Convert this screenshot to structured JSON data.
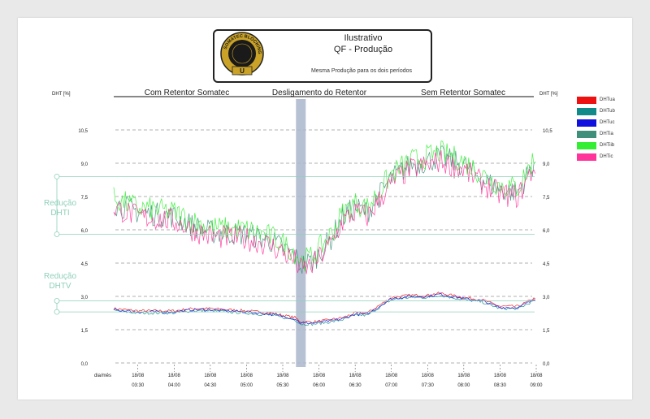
{
  "header": {
    "title": "Ilustrativo",
    "subtitle": "QF - Produção",
    "note": "Mesma Produção para os dois períodos",
    "logo": {
      "text": "SOMATEC BLOCKING",
      "letter": "U",
      "ring_color": "#c9a227",
      "badge_color": "#1a1a1a"
    }
  },
  "periods": [
    "Com Retentor Somatec",
    "Desligamento do Retentor",
    "Sem Retentor Somatec"
  ],
  "annotations": {
    "dhti": [
      "Redução",
      "DHTI"
    ],
    "dhtv": [
      "Redução",
      "DHTV"
    ]
  },
  "colors": {
    "annotation": "#8fd0b8",
    "shutdown_band": "#aab6cc",
    "grid": "#666666"
  },
  "legend": [
    {
      "name": "DHTua",
      "color": "#ee1111"
    },
    {
      "name": "DHTub",
      "color": "#138a8a"
    },
    {
      "name": "DHTuc",
      "color": "#1111dd"
    },
    {
      "name": "DHTia",
      "color": "#3f8f7a"
    },
    {
      "name": "DHTiib",
      "color": "#33ee33"
    },
    {
      "name": "DHTic",
      "color": "#ff3399"
    }
  ],
  "chart_data": {
    "type": "line",
    "ylabel": "DHT [%]",
    "ylim": [
      0,
      11
    ],
    "yticks_left": [
      "0,0",
      "1,5",
      "3,0",
      "4,5",
      "6,0",
      "7,5",
      "9,0",
      "10,5"
    ],
    "yticks_right": [
      "0,0",
      "1,5",
      "3,0",
      "4,5",
      "6,0",
      "7,5",
      "9,0",
      "10,5"
    ],
    "xlabel": "dia/mês",
    "x_dates": [
      "18/08",
      "18/08",
      "18/08",
      "18/08",
      "18/08",
      "18/08",
      "18/08",
      "18/08",
      "18/08",
      "18/08",
      "18/08",
      "18/08"
    ],
    "x_times": [
      "03:30",
      "04:00",
      "04:30",
      "05:00",
      "05:30",
      "06:00",
      "06:30",
      "07:00",
      "07:30",
      "08:00",
      "08:30",
      "09:00"
    ],
    "shutdown_time": "05:45",
    "current_profile": {
      "times": [
        "03:10",
        "03:30",
        "04:00",
        "04:15",
        "04:30",
        "05:00",
        "05:20",
        "05:30",
        "05:40",
        "05:45",
        "05:55",
        "06:10",
        "06:20",
        "06:30",
        "06:40",
        "07:00",
        "07:15",
        "07:30",
        "07:40",
        "08:00",
        "08:15",
        "08:30",
        "08:45",
        "09:00"
      ],
      "values": [
        7.2,
        6.8,
        6.6,
        6.2,
        5.9,
        5.8,
        5.5,
        5.2,
        4.8,
        4.4,
        4.6,
        5.6,
        6.6,
        7.0,
        6.8,
        8.3,
        8.9,
        9.1,
        9.3,
        8.9,
        8.3,
        7.8,
        7.7,
        9.2
      ]
    },
    "voltage_profile": {
      "times": [
        "03:10",
        "03:30",
        "04:00",
        "04:15",
        "04:30",
        "05:00",
        "05:20",
        "05:30",
        "05:40",
        "05:45",
        "05:55",
        "06:10",
        "06:20",
        "06:30",
        "06:40",
        "07:00",
        "07:15",
        "07:30",
        "07:40",
        "08:00",
        "08:15",
        "08:30",
        "08:45",
        "09:00"
      ],
      "values": [
        2.4,
        2.3,
        2.3,
        2.4,
        2.4,
        2.3,
        2.2,
        2.1,
        2.0,
        1.8,
        1.8,
        1.9,
        2.0,
        2.2,
        2.2,
        2.9,
        3.0,
        3.0,
        3.1,
        2.9,
        2.8,
        2.5,
        2.5,
        2.9
      ]
    },
    "series": [
      {
        "name": "DHTua",
        "group": "voltage",
        "offset": 0.05
      },
      {
        "name": "DHTub",
        "group": "voltage",
        "offset": -0.05
      },
      {
        "name": "DHTuc",
        "group": "voltage",
        "offset": 0.0
      },
      {
        "name": "DHTia",
        "group": "current",
        "offset": 0.0
      },
      {
        "name": "DHTiib",
        "group": "current",
        "offset": 0.2
      },
      {
        "name": "DHTic",
        "group": "current",
        "offset": -0.2
      }
    ],
    "reduction_dhti": {
      "from": 8.4,
      "to": 5.8
    },
    "reduction_dhtv": {
      "from": 2.8,
      "to": 2.3
    },
    "grid": true,
    "legend_position": "right"
  }
}
